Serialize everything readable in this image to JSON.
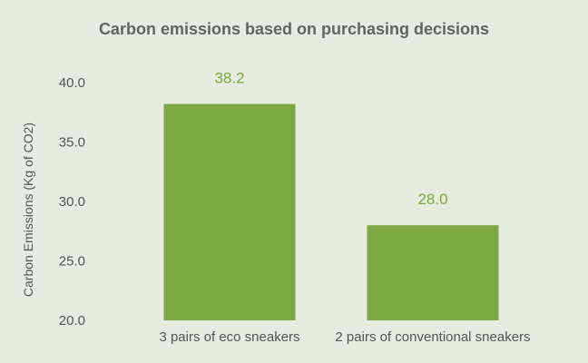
{
  "chart_data": {
    "type": "bar",
    "title": "Carbon emissions based on purchasing decisions",
    "xlabel": "",
    "ylabel": "Carbon Emissions (Kg of CO2)",
    "categories": [
      "3 pairs of eco sneakers",
      "2 pairs of conventional sneakers"
    ],
    "values": [
      38.2,
      28.0
    ],
    "data_labels": [
      "38.2",
      "28.0"
    ],
    "ylim": [
      20.0,
      40.0
    ],
    "yticks": [
      20.0,
      25.0,
      30.0,
      35.0,
      40.0
    ],
    "ytick_labels": [
      "20.0",
      "25.0",
      "30.0",
      "35.0",
      "40.0"
    ],
    "grid": false,
    "legend": "none",
    "colors": {
      "background": "#e6ede0",
      "bar": "#7ea840",
      "title": "#5f6660",
      "data_label": "#7aa63e",
      "axis_text": "#4f5650"
    }
  }
}
